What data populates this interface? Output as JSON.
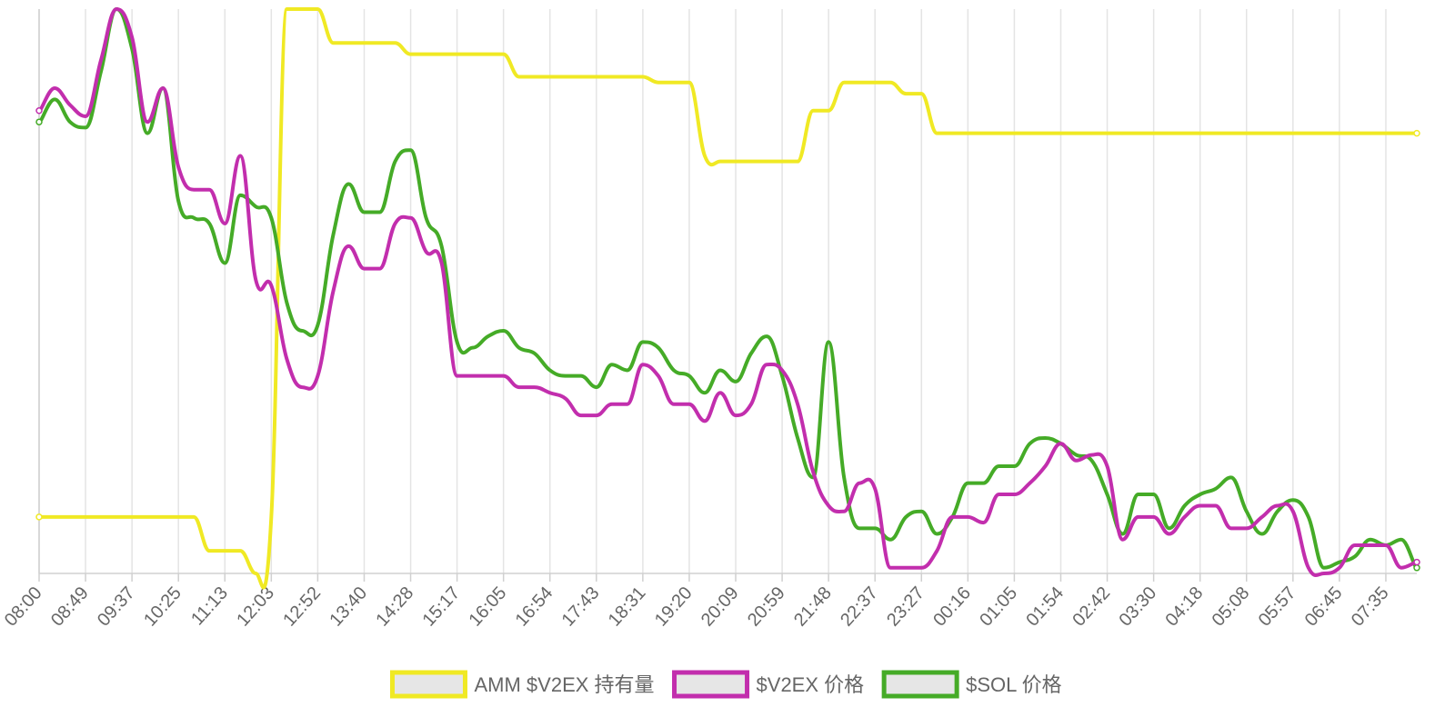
{
  "chart_data": {
    "type": "line",
    "title": "",
    "xlabel": "",
    "ylabel": "",
    "grid": "vertical",
    "legend_position": "bottom",
    "tick_labels": [
      "08:00",
      "08:49",
      "09:37",
      "10:25",
      "11:13",
      "12:03",
      "12:52",
      "13:40",
      "14:28",
      "15:17",
      "16:05",
      "16:54",
      "17:43",
      "18:31",
      "19:20",
      "20:09",
      "20:59",
      "21:48",
      "22:37",
      "23:27",
      "00:16",
      "01:05",
      "01:54",
      "02:42",
      "03:30",
      "04:18",
      "05:08",
      "05:57",
      "06:45",
      "07:35"
    ],
    "x_count": 90,
    "series": [
      {
        "name": "AMM $V2EX 持有量",
        "color": "#f0e924",
        "axis": "left",
        "ylim": [
          0,
          100
        ],
        "values": [
          10,
          10,
          10,
          10,
          10,
          10,
          10,
          10,
          10,
          10,
          10,
          4,
          4,
          4,
          0,
          10,
          100,
          100,
          100,
          94,
          94,
          94,
          94,
          94,
          92,
          92,
          92,
          92,
          92,
          92,
          92,
          88,
          88,
          88,
          88,
          88,
          88,
          88,
          88,
          88,
          87,
          87,
          87,
          74,
          73,
          73,
          73,
          73,
          73,
          73,
          82,
          82,
          87,
          87,
          87,
          87,
          85,
          85,
          78,
          78,
          78,
          78,
          78,
          78,
          78,
          78,
          78,
          78,
          78,
          78,
          78,
          78,
          78,
          78,
          78,
          78,
          78,
          78,
          78,
          78,
          78,
          78,
          78,
          78,
          78,
          78,
          78,
          78,
          78,
          78
        ]
      },
      {
        "name": "$V2EX 价格",
        "color": "#c22ead",
        "axis": "right",
        "ylim": [
          0,
          100
        ],
        "values": [
          82,
          86,
          83,
          81,
          91,
          100,
          95,
          80,
          86,
          72,
          68,
          68,
          62,
          74,
          52,
          51,
          38,
          33,
          35,
          50,
          58,
          54,
          54,
          62,
          63,
          57,
          55,
          35,
          35,
          35,
          35,
          33,
          33,
          32,
          31,
          28,
          28,
          30,
          30,
          37,
          35,
          30,
          30,
          27,
          32,
          28,
          30,
          37,
          36,
          30,
          18,
          12,
          11,
          16,
          15,
          1,
          1,
          1,
          4,
          10,
          10,
          9,
          14,
          14,
          16,
          19,
          23,
          20,
          21,
          19,
          6,
          10,
          10,
          7,
          10,
          12,
          12,
          8,
          8,
          10,
          12,
          11,
          1,
          0,
          1,
          5,
          5,
          5,
          1,
          2
        ]
      },
      {
        "name": "$SOL 价格",
        "color": "#45ab27",
        "axis": "right",
        "ylim": [
          0,
          100
        ],
        "values": [
          80,
          84,
          80,
          79,
          89,
          100,
          93,
          78,
          86,
          66,
          63,
          62,
          55,
          67,
          65,
          63,
          48,
          43,
          44,
          60,
          69,
          64,
          64,
          73,
          75,
          63,
          58,
          41,
          40,
          42,
          43,
          40,
          39,
          36,
          35,
          35,
          33,
          37,
          36,
          41,
          40,
          36,
          35,
          32,
          36,
          34,
          39,
          42,
          35,
          24,
          17,
          41,
          17,
          8,
          8,
          6,
          10,
          11,
          7,
          10,
          16,
          16,
          19,
          19,
          23,
          24,
          23,
          21,
          20,
          14,
          7,
          14,
          14,
          8,
          12,
          14,
          15,
          17,
          11,
          7,
          11,
          13,
          10,
          1,
          2,
          3,
          6,
          5,
          6,
          1
        ]
      }
    ],
    "ylim": [
      0,
      100
    ]
  }
}
